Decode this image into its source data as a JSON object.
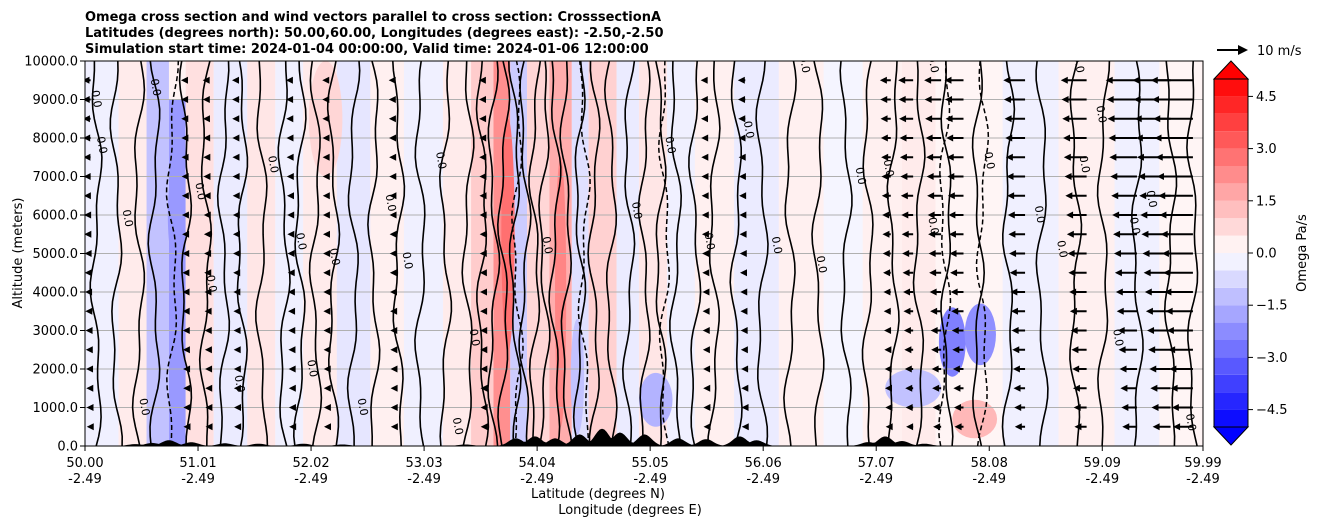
{
  "chart_data": {
    "type": "heatmap",
    "title_lines": [
      "Omega cross section and wind vectors parallel to cross section: CrosssectionA",
      "Latitudes (degrees north): 50.00,60.00, Longitudes (degrees east): -2.50,-2.50",
      "Simulation start time: 2024-01-04 00:00:00, Valid time: 2024-01-06 12:00:00"
    ],
    "ylabel": "Altitude (meters)",
    "xlabel_lines": [
      "Latitude (degrees N)",
      "Longitude (degrees E)"
    ],
    "ylim": [
      0,
      10000
    ],
    "xlim": [
      50.0,
      59.99
    ],
    "y_ticks": [
      0,
      1000,
      2000,
      3000,
      4000,
      5000,
      6000,
      7000,
      8000,
      9000,
      10000
    ],
    "y_tick_labels": [
      "0.0",
      "1000.0",
      "2000.0",
      "3000.0",
      "4000.0",
      "5000.0",
      "6000.0",
      "7000.0",
      "8000.0",
      "9000.0",
      "10000.0"
    ],
    "x_ticks": [
      50.0,
      51.01,
      52.02,
      53.03,
      54.04,
      55.05,
      56.06,
      57.07,
      58.08,
      59.09,
      59.99
    ],
    "x_tick_lat_labels": [
      "50.00",
      "51.01",
      "52.02",
      "53.03",
      "54.04",
      "55.05",
      "56.06",
      "57.07",
      "58.08",
      "59.09",
      "59.99"
    ],
    "x_tick_lon_labels": [
      "-2.49",
      "-2.49",
      "-2.49",
      "-2.49",
      "-2.49",
      "-2.49",
      "-2.49",
      "-2.49",
      "-2.49",
      "-2.49",
      "-2.49"
    ],
    "grid": "horizontal",
    "colorbar": {
      "label": "Omega Pa/s",
      "range": [
        -5.0,
        5.0
      ],
      "ticks": [
        4.5,
        3.0,
        1.5,
        0.0,
        -1.5,
        -3.0,
        -4.5
      ],
      "tick_labels": [
        "4.5",
        "3.0",
        "1.5",
        "0.0",
        "−1.5",
        "−3.0",
        "−4.5"
      ],
      "extend": "both",
      "colormap": "bwr"
    },
    "quiver_key": {
      "label": "10 m/s",
      "speed": 10
    },
    "contour_label": "0.0",
    "omega_bands": [
      {
        "x0": 50.0,
        "x1": 50.3,
        "ymax": 10000,
        "omega": -0.3
      },
      {
        "x0": 50.3,
        "x1": 50.55,
        "ymax": 10000,
        "omega": 0.4
      },
      {
        "x0": 50.55,
        "x1": 50.75,
        "ymax": 10000,
        "omega": -1.2
      },
      {
        "x0": 50.75,
        "x1": 50.9,
        "ymax": 9000,
        "omega": -2.0
      },
      {
        "x0": 50.9,
        "x1": 51.15,
        "ymax": 10000,
        "omega": 0.6
      },
      {
        "x0": 51.15,
        "x1": 51.45,
        "ymax": 10000,
        "omega": -0.4
      },
      {
        "x0": 51.45,
        "x1": 51.7,
        "ymax": 10000,
        "omega": 0.5
      },
      {
        "x0": 51.7,
        "x1": 51.95,
        "ymax": 10000,
        "omega": -0.3
      },
      {
        "x0": 51.95,
        "x1": 52.25,
        "ymax": 10000,
        "omega": 0.4
      },
      {
        "x0": 52.25,
        "x1": 52.55,
        "ymax": 10000,
        "omega": -0.5
      },
      {
        "x0": 52.55,
        "x1": 52.85,
        "ymax": 10000,
        "omega": 0.3
      },
      {
        "x0": 52.85,
        "x1": 53.2,
        "ymax": 10000,
        "omega": -0.3
      },
      {
        "x0": 53.2,
        "x1": 53.45,
        "ymax": 10000,
        "omega": 0.4
      },
      {
        "x0": 53.45,
        "x1": 53.65,
        "ymax": 10000,
        "omega": 1.0
      },
      {
        "x0": 53.65,
        "x1": 53.8,
        "ymax": 10000,
        "omega": 2.2
      },
      {
        "x0": 53.8,
        "x1": 53.95,
        "ymax": 10000,
        "omega": -1.0
      },
      {
        "x0": 53.95,
        "x1": 54.15,
        "ymax": 10000,
        "omega": 0.8
      },
      {
        "x0": 54.15,
        "x1": 54.35,
        "ymax": 10000,
        "omega": 1.6
      },
      {
        "x0": 54.35,
        "x1": 54.5,
        "ymax": 10000,
        "omega": -0.6
      },
      {
        "x0": 54.5,
        "x1": 54.75,
        "ymax": 10000,
        "omega": 0.9
      },
      {
        "x0": 54.75,
        "x1": 54.95,
        "ymax": 10000,
        "omega": -0.4
      },
      {
        "x0": 54.95,
        "x1": 55.2,
        "ymax": 10000,
        "omega": 0.5
      },
      {
        "x0": 55.2,
        "x1": 55.45,
        "ymax": 10000,
        "omega": -0.3
      },
      {
        "x0": 55.45,
        "x1": 55.8,
        "ymax": 10000,
        "omega": 0.3
      },
      {
        "x0": 55.8,
        "x1": 56.2,
        "ymax": 10000,
        "omega": -0.4
      },
      {
        "x0": 56.2,
        "x1": 56.6,
        "ymax": 10000,
        "omega": 0.3
      },
      {
        "x0": 56.6,
        "x1": 56.95,
        "ymax": 10000,
        "omega": -0.2
      },
      {
        "x0": 56.95,
        "x1": 57.3,
        "ymax": 10000,
        "omega": 0.3
      },
      {
        "x0": 57.3,
        "x1": 57.6,
        "ymax": 10000,
        "omega": 0.4
      },
      {
        "x0": 57.6,
        "x1": 58.2,
        "ymax": 10000,
        "omega": 0.2
      },
      {
        "x0": 58.2,
        "x1": 58.7,
        "ymax": 10000,
        "omega": -0.3
      },
      {
        "x0": 58.7,
        "x1": 59.2,
        "ymax": 10000,
        "omega": 0.3
      },
      {
        "x0": 59.2,
        "x1": 59.6,
        "ymax": 10000,
        "omega": -0.3
      },
      {
        "x0": 59.6,
        "x1": 59.99,
        "ymax": 10000,
        "omega": 0.2
      }
    ],
    "omega_blobs": [
      {
        "x": 57.75,
        "y": 2700,
        "rx": 0.12,
        "ry": 900,
        "omega": -2.5
      },
      {
        "x": 58.0,
        "y": 2900,
        "rx": 0.14,
        "ry": 800,
        "omega": -2.2
      },
      {
        "x": 57.4,
        "y": 1500,
        "rx": 0.25,
        "ry": 500,
        "omega": -1.2
      },
      {
        "x": 57.95,
        "y": 700,
        "rx": 0.2,
        "ry": 500,
        "omega": 1.4
      },
      {
        "x": 53.78,
        "y": 5500,
        "rx": 0.06,
        "ry": 3000,
        "omega": 2.8
      },
      {
        "x": 54.25,
        "y": 4000,
        "rx": 0.05,
        "ry": 3500,
        "omega": 2.4
      },
      {
        "x": 50.8,
        "y": 6000,
        "rx": 0.06,
        "ry": 1200,
        "omega": -2.0
      },
      {
        "x": 55.1,
        "y": 1200,
        "rx": 0.15,
        "ry": 700,
        "omega": -1.5
      },
      {
        "x": 54.4,
        "y": 1800,
        "rx": 0.06,
        "ry": 1500,
        "omega": -1.2
      },
      {
        "x": 52.15,
        "y": 8500,
        "rx": 0.15,
        "ry": 1500,
        "omega": 0.8
      }
    ],
    "contour_lines_x": [
      50.1,
      50.28,
      50.48,
      50.62,
      50.9,
      51.08,
      51.24,
      51.4,
      51.58,
      51.78,
      51.92,
      52.06,
      52.22,
      52.4,
      52.58,
      52.8,
      53.0,
      53.22,
      53.42,
      53.55,
      53.65,
      53.74,
      53.84,
      53.93,
      54.02,
      54.1,
      54.2,
      54.3,
      54.42,
      54.55,
      54.7,
      54.86,
      55.0,
      55.14,
      55.28,
      55.45,
      55.62,
      55.82,
      56.05,
      56.3,
      56.55,
      56.8,
      57.0,
      57.22,
      57.45,
      57.7,
      57.98,
      58.25,
      58.55,
      58.85,
      59.1,
      59.4,
      59.7,
      59.9
    ],
    "dashed_contour_x": [
      50.78,
      53.86,
      54.46,
      55.18,
      57.68,
      58.02
    ],
    "contour_label_positions": [
      {
        "x": 50.07,
        "y": 9000
      },
      {
        "x": 50.12,
        "y": 7800
      },
      {
        "x": 50.35,
        "y": 5900
      },
      {
        "x": 50.5,
        "y": 1000
      },
      {
        "x": 50.6,
        "y": 9300
      },
      {
        "x": 51.0,
        "y": 6600
      },
      {
        "x": 51.1,
        "y": 4200
      },
      {
        "x": 51.35,
        "y": 1600
      },
      {
        "x": 51.65,
        "y": 7300
      },
      {
        "x": 51.9,
        "y": 5300
      },
      {
        "x": 52.0,
        "y": 2000
      },
      {
        "x": 52.2,
        "y": 4900
      },
      {
        "x": 52.45,
        "y": 1000
      },
      {
        "x": 52.7,
        "y": 6300
      },
      {
        "x": 52.85,
        "y": 4800
      },
      {
        "x": 53.15,
        "y": 7400
      },
      {
        "x": 53.3,
        "y": 500
      },
      {
        "x": 53.45,
        "y": 2800
      },
      {
        "x": 54.1,
        "y": 5200
      },
      {
        "x": 54.9,
        "y": 6100
      },
      {
        "x": 55.2,
        "y": 7800
      },
      {
        "x": 55.55,
        "y": 5300
      },
      {
        "x": 55.9,
        "y": 8200
      },
      {
        "x": 56.15,
        "y": 5200
      },
      {
        "x": 56.55,
        "y": 4700
      },
      {
        "x": 56.9,
        "y": 7000
      },
      {
        "x": 57.15,
        "y": 7200
      },
      {
        "x": 57.55,
        "y": 5700
      },
      {
        "x": 58.05,
        "y": 7400
      },
      {
        "x": 58.5,
        "y": 6000
      },
      {
        "x": 58.7,
        "y": 5100
      },
      {
        "x": 58.9,
        "y": 7300
      },
      {
        "x": 59.05,
        "y": 8600
      },
      {
        "x": 59.2,
        "y": 2800
      },
      {
        "x": 59.35,
        "y": 5700
      },
      {
        "x": 59.5,
        "y": 6400
      },
      {
        "x": 59.85,
        "y": 600
      },
      {
        "x": 56.4,
        "y": 9900
      },
      {
        "x": 57.55,
        "y": 9900
      },
      {
        "x": 58.85,
        "y": 9900
      }
    ],
    "terrain_peaks": [
      {
        "x": 50.45,
        "h": 50
      },
      {
        "x": 50.6,
        "h": 80
      },
      {
        "x": 50.75,
        "h": 150
      },
      {
        "x": 50.95,
        "h": 100
      },
      {
        "x": 51.25,
        "h": 70
      },
      {
        "x": 51.55,
        "h": 60
      },
      {
        "x": 51.95,
        "h": 60
      },
      {
        "x": 52.3,
        "h": 40
      },
      {
        "x": 53.4,
        "h": 40
      },
      {
        "x": 53.85,
        "h": 200
      },
      {
        "x": 54.02,
        "h": 250
      },
      {
        "x": 54.2,
        "h": 200
      },
      {
        "x": 54.42,
        "h": 300
      },
      {
        "x": 54.62,
        "h": 450
      },
      {
        "x": 54.78,
        "h": 350
      },
      {
        "x": 55.0,
        "h": 300
      },
      {
        "x": 55.3,
        "h": 200
      },
      {
        "x": 55.55,
        "h": 180
      },
      {
        "x": 55.85,
        "h": 250
      },
      {
        "x": 56.0,
        "h": 150
      },
      {
        "x": 57.0,
        "h": 100
      },
      {
        "x": 57.15,
        "h": 250
      },
      {
        "x": 57.3,
        "h": 130
      },
      {
        "x": 57.5,
        "h": 60
      }
    ],
    "wind_columns": [
      {
        "x": 50.05,
        "u": -1.2
      },
      {
        "x": 50.9,
        "u": -0.7
      },
      {
        "x": 51.1,
        "u": -0.8
      },
      {
        "x": 51.35,
        "u": -0.6
      },
      {
        "x": 51.85,
        "u": -0.9
      },
      {
        "x": 52.15,
        "u": -0.5
      },
      {
        "x": 52.75,
        "u": -0.6
      },
      {
        "x": 53.55,
        "u": -0.5
      },
      {
        "x": 55.55,
        "u": -0.8
      },
      {
        "x": 55.9,
        "u": -1.1
      },
      {
        "x": 57.2,
        "u": -1.6
      },
      {
        "x": 57.4,
        "u": -2.2
      },
      {
        "x": 57.65,
        "u": -2.5
      },
      {
        "x": 57.85,
        "u": -2.8
      },
      {
        "x": 58.4,
        "u": -3.2
      },
      {
        "x": 58.95,
        "u": -3.8
      },
      {
        "x": 59.4,
        "u": -4.6
      },
      {
        "x": 59.7,
        "u": -5.6
      },
      {
        "x": 59.9,
        "u": -6.2
      }
    ],
    "wind_levels": [
      500,
      1000,
      1500,
      2000,
      2500,
      3000,
      3500,
      4000,
      4500,
      5000,
      5500,
      6000,
      6500,
      7000,
      7500,
      8000,
      8500,
      9000,
      9500
    ]
  }
}
